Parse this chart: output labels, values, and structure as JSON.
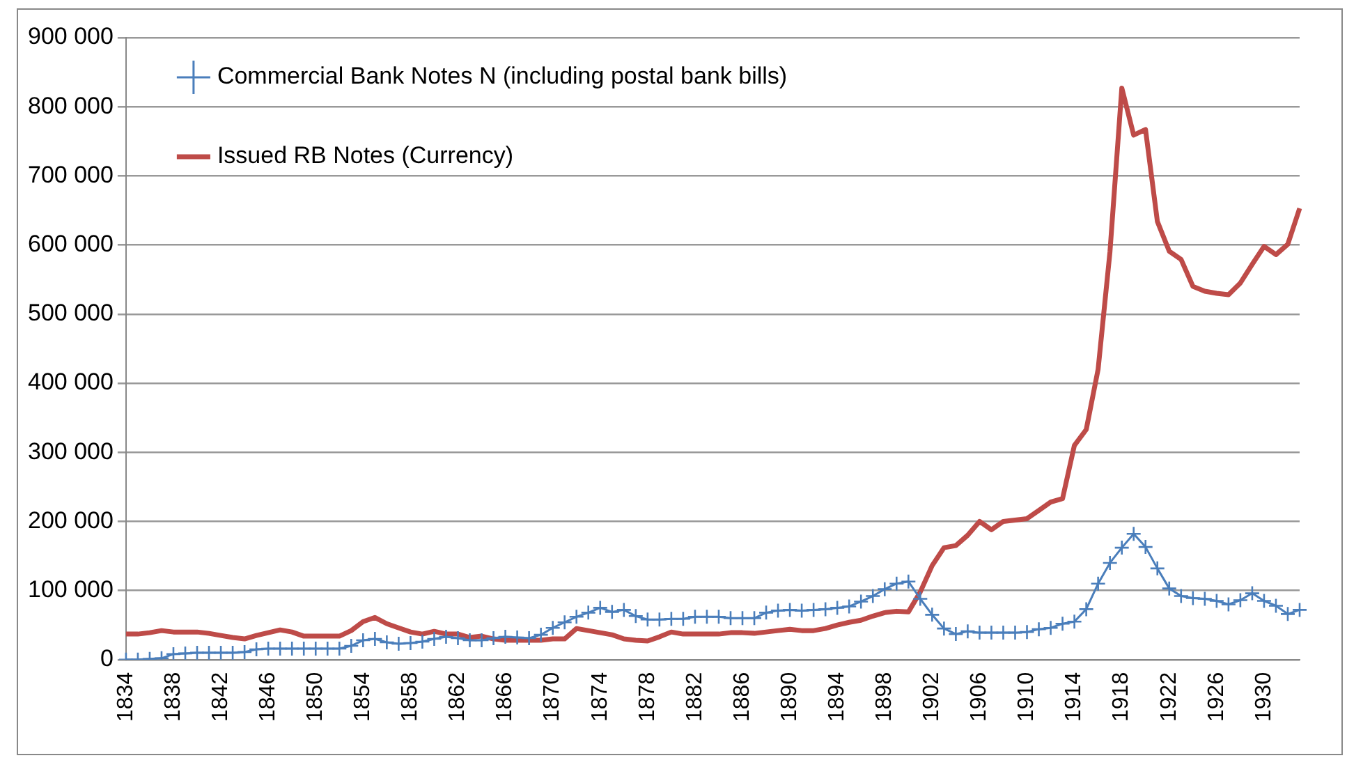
{
  "chart_data": {
    "type": "line",
    "categories": [
      "1834",
      null,
      null,
      null,
      "1838",
      null,
      null,
      null,
      "1842",
      null,
      null,
      null,
      "1846",
      null,
      null,
      null,
      "1850",
      null,
      null,
      null,
      "1854",
      null,
      null,
      null,
      "1858",
      null,
      null,
      null,
      "1862",
      null,
      null,
      null,
      "1866",
      null,
      null,
      null,
      "1870",
      null,
      null,
      null,
      "1874",
      null,
      null,
      null,
      "1878",
      null,
      null,
      null,
      "1882",
      null,
      null,
      null,
      "1886",
      null,
      null,
      null,
      "1890",
      null,
      null,
      null,
      "1894",
      null,
      null,
      null,
      "1898",
      null,
      null,
      null,
      "1902",
      null,
      null,
      null,
      "1906",
      null,
      null,
      null,
      "1910",
      null,
      null,
      null,
      "1914",
      null,
      null,
      null,
      "1918",
      null,
      null,
      null,
      "1922",
      null,
      null,
      null,
      "1926",
      null,
      null,
      null,
      "1930",
      null,
      null,
      null
    ],
    "series": [
      {
        "name": "Commercial Bank Notes N (including postal bank bills)",
        "color": "#4a7ebb",
        "marker": "cross",
        "values": [
          0,
          0,
          1000,
          2000,
          8000,
          9000,
          10000,
          10000,
          10000,
          10000,
          11000,
          15000,
          16000,
          16000,
          16000,
          16000,
          16000,
          16000,
          16000,
          20000,
          28000,
          30000,
          25000,
          23000,
          24000,
          26000,
          30000,
          33000,
          31000,
          28000,
          28000,
          31000,
          33000,
          32000,
          31000,
          36000,
          46000,
          54000,
          62000,
          68000,
          75000,
          69000,
          72000,
          63000,
          58000,
          58000,
          59000,
          59000,
          62000,
          62000,
          62000,
          60000,
          60000,
          60000,
          68000,
          71000,
          72000,
          71000,
          72000,
          73000,
          75000,
          77000,
          84000,
          92000,
          102000,
          110000,
          113000,
          88000,
          65000,
          45000,
          37000,
          41000,
          39000,
          39000,
          39000,
          39000,
          40000,
          44000,
          46000,
          52000,
          55000,
          73000,
          110000,
          140000,
          162000,
          182000,
          163000,
          132000,
          103000,
          92000,
          89000,
          88000,
          85000,
          80000,
          86000,
          96000,
          85000,
          78000,
          66000,
          72000
        ]
      },
      {
        "name": "Issued RB Notes (Currency)",
        "color": "#be4b48",
        "marker": "none",
        "values": [
          37000,
          37000,
          39000,
          42000,
          40000,
          40000,
          40000,
          38000,
          35000,
          32000,
          30000,
          35000,
          39000,
          43000,
          40000,
          34000,
          34000,
          34000,
          34000,
          42000,
          55000,
          61000,
          52000,
          46000,
          40000,
          37000,
          41000,
          37000,
          37000,
          32000,
          34000,
          30000,
          28000,
          28000,
          28000,
          28000,
          30000,
          30000,
          45000,
          42000,
          39000,
          36000,
          30000,
          28000,
          27000,
          33000,
          40000,
          37000,
          37000,
          37000,
          37000,
          39000,
          39000,
          38000,
          40000,
          42000,
          44000,
          42000,
          42000,
          45000,
          50000,
          54000,
          57000,
          63000,
          68000,
          70000,
          69000,
          98000,
          136000,
          162000,
          165000,
          180000,
          200000,
          188000,
          200000,
          202000,
          204000,
          216000,
          228000,
          233000,
          310000,
          333000,
          420000,
          590000,
          827000,
          759000,
          767000,
          634000,
          591000,
          579000,
          540000,
          533000,
          530000,
          528000,
          545000,
          572000,
          598000,
          586000,
          601000,
          653000
        ]
      }
    ],
    "ylim": [
      0,
      900000
    ],
    "yticks": [
      {
        "value": 0,
        "label": "0"
      },
      {
        "value": 100000,
        "label": "100 000"
      },
      {
        "value": 200000,
        "label": "200 000"
      },
      {
        "value": 300000,
        "label": "300 000"
      },
      {
        "value": 400000,
        "label": "400 000"
      },
      {
        "value": 500000,
        "label": "500 000"
      },
      {
        "value": 600000,
        "label": "600 000"
      },
      {
        "value": 700000,
        "label": "700 000"
      },
      {
        "value": 800000,
        "label": "800 000"
      },
      {
        "value": 900000,
        "label": "900 000"
      }
    ],
    "grid": "y",
    "legend": "top left",
    "line_style": "solid"
  }
}
